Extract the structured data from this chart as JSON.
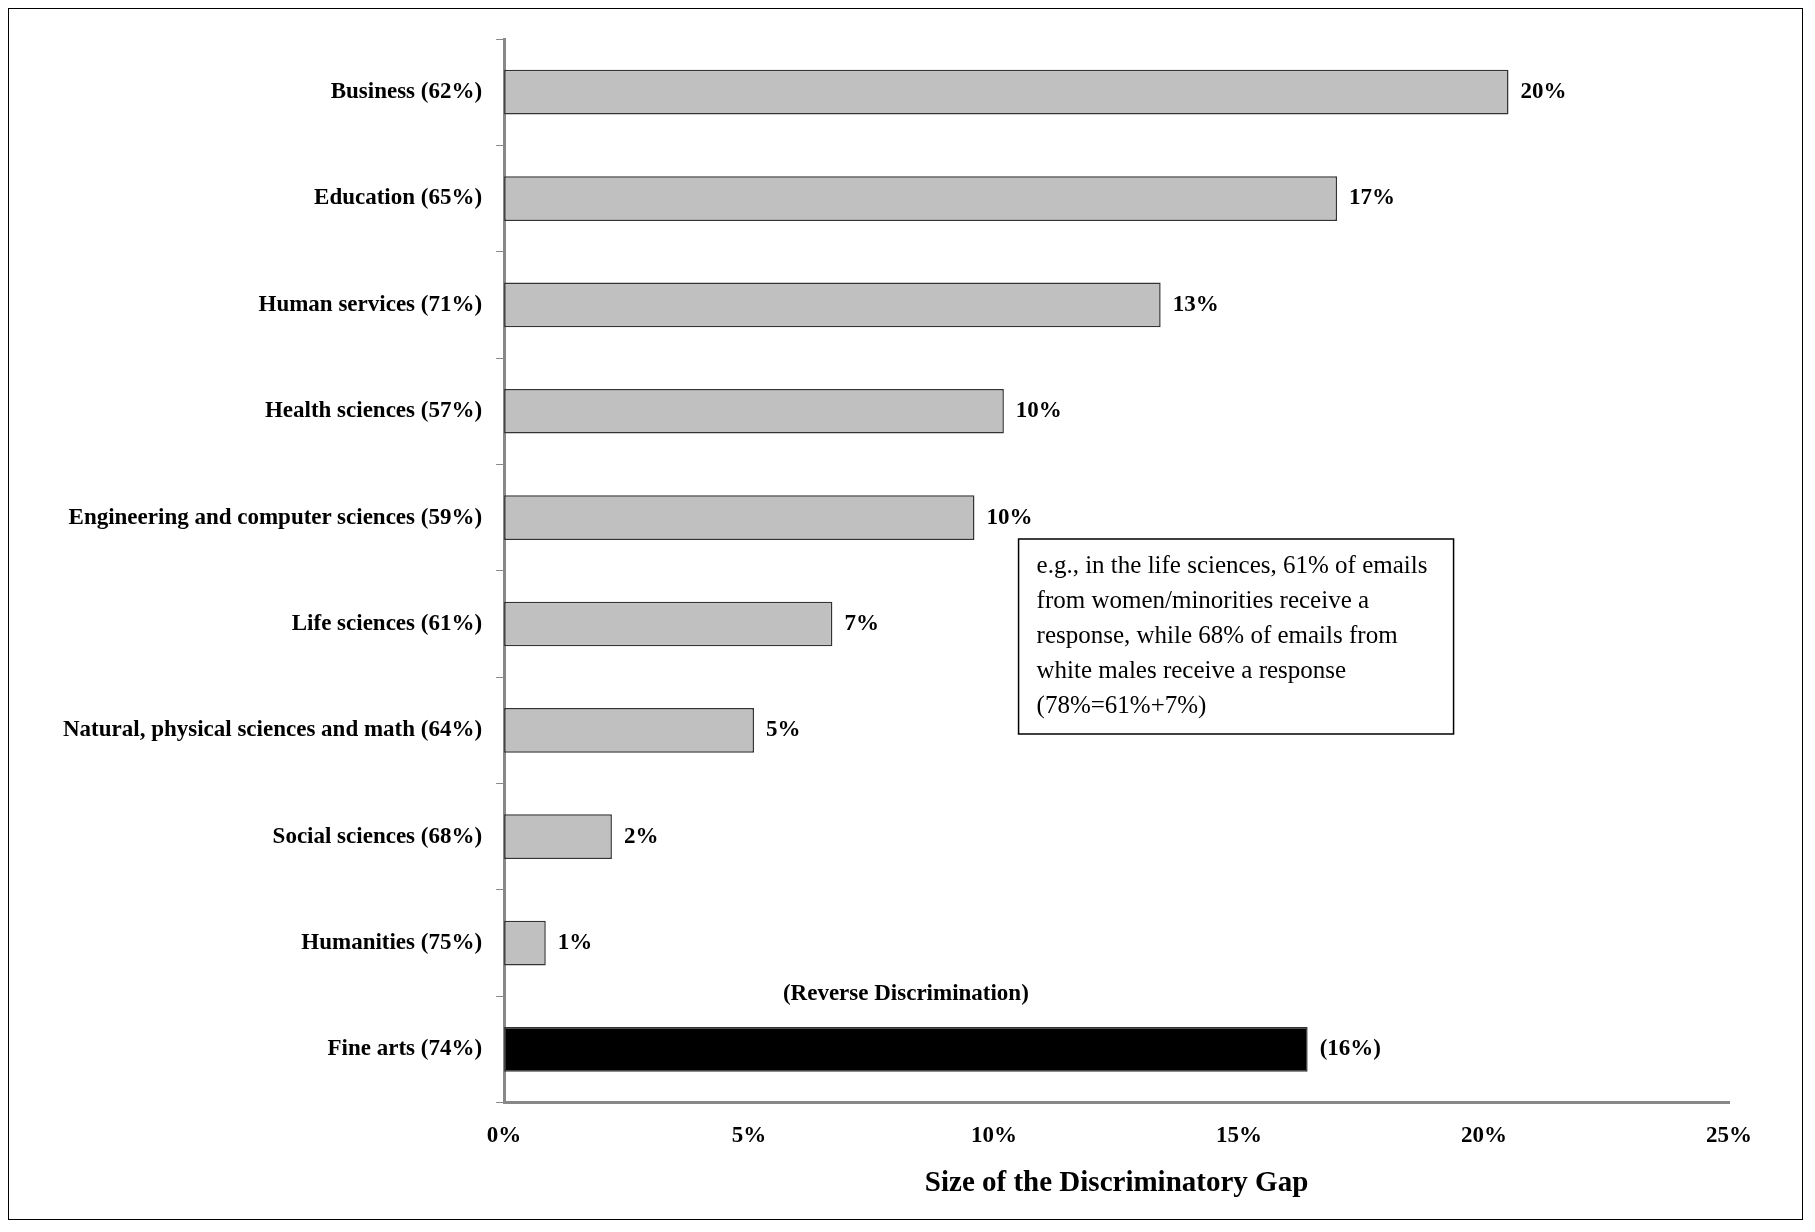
{
  "chart_data": {
    "type": "bar",
    "orientation": "horizontal",
    "xlabel": "Size of the Discriminatory Gap",
    "categories": [
      "Business (62%)",
      "Education (65%)",
      "Human services (71%)",
      "Health sciences (57%)",
      "Engineering and computer sciences (59%)",
      "Life sciences (61%)",
      "Natural, physical sciences and math (64%)",
      "Social sciences (68%)",
      "Humanities (75%)",
      "Fine arts (74%)"
    ],
    "values": [
      20.5,
      17.0,
      13.4,
      10.2,
      9.6,
      6.7,
      5.1,
      2.2,
      0.85,
      16.4
    ],
    "colors": [
      "#c0c0c0",
      "#c0c0c0",
      "#c0c0c0",
      "#c0c0c0",
      "#c0c0c0",
      "#c0c0c0",
      "#c0c0c0",
      "#c0c0c0",
      "#c0c0c0",
      "#000000"
    ],
    "value_labels": [
      "20%",
      "17%",
      "13%",
      "10%",
      "10%",
      "7%",
      "5%",
      "2%",
      "1%",
      "(16%)"
    ],
    "xlim": [
      0,
      25
    ],
    "xticks": [
      {
        "value": 0,
        "label": "0%"
      },
      {
        "value": 5,
        "label": "5%"
      },
      {
        "value": 10,
        "label": "10%"
      },
      {
        "value": 15,
        "label": "15%"
      },
      {
        "value": 20,
        "label": "20%"
      },
      {
        "value": 25,
        "label": "25%"
      }
    ],
    "grid": false,
    "legend": false,
    "annotations": [
      "(Reverse Discrimination)",
      "e.g., in the life sciences, 61% of emails from women/minorities receive a response, while 68% of emails from white males receive a response (78%=61%+7%)"
    ]
  }
}
